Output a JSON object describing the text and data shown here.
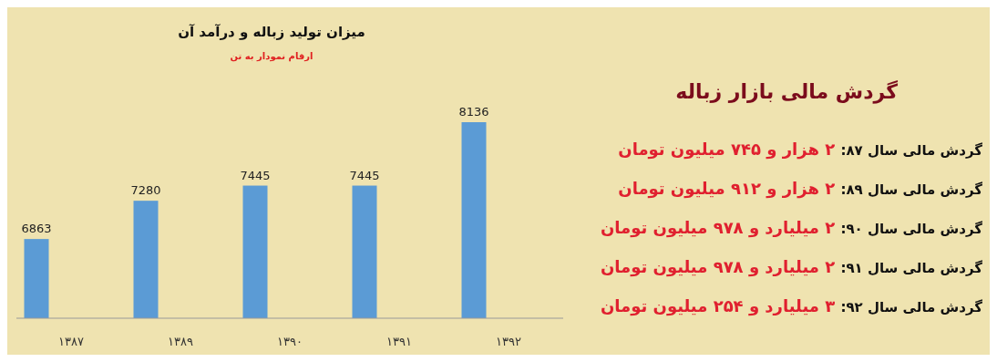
{
  "chart_data": [
    {
      "type": "bar",
      "title": "میزان تولید زباله و درآمد آن",
      "subtitle": "ارقام نمودار به تن",
      "categories": [
        "۱۳۸۷",
        "۱۳۸۹",
        "۱۳۹۰",
        "۱۳۹۱",
        "۱۳۹۲"
      ],
      "values": [
        6863,
        7280,
        7445,
        7445,
        8136
      ],
      "color": "#5b9bd5",
      "ylim": [
        6000,
        8136
      ],
      "tick_labels": "x",
      "data_labels": true
    },
    {
      "type": "other",
      "title": "گردش مالی بازار زباله",
      "annotations": [
        "گردش مالی سال ۸۷: ۲ هزار و ۷۴۵ میلیون تومان",
        "گردش مالی سال ۸۹: ۲ هزار و ۹۱۲ میلیون تومان",
        "گردش مالی سال ۹۰: ۲ میلیارد و ۹۷۸ میلیون تومان",
        "گردش مالی سال ۹۱: ۲ میلیارد و ۹۷۸ میلیون تومان",
        "گردش مالی سال ۹۲: ۳ میلیارد و ۲۵۴ میلیون تومان"
      ]
    }
  ]
}
